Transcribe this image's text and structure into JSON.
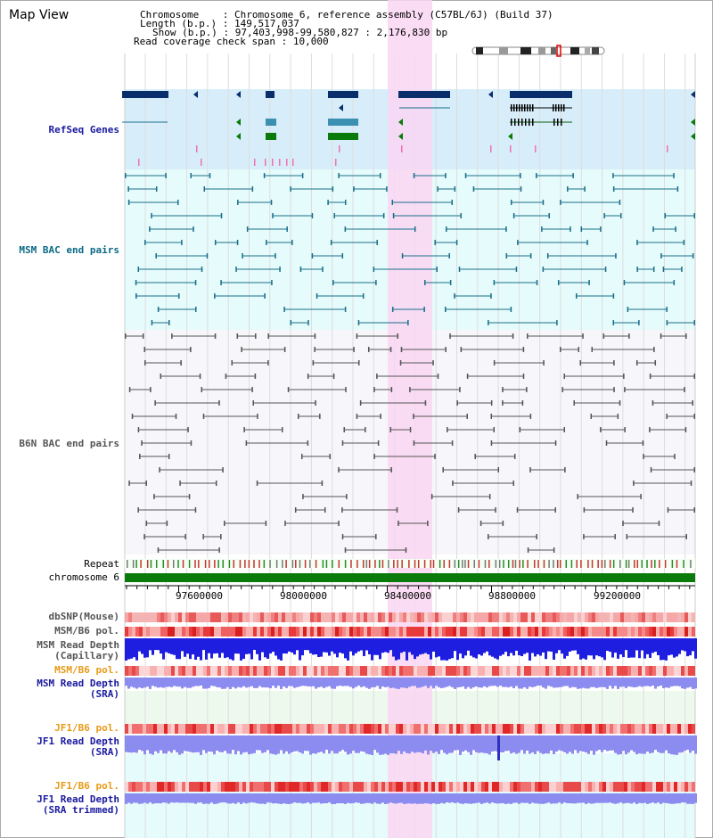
{
  "page": {
    "title": "Map View"
  },
  "info": {
    "chromosome_label": "Chromosome",
    "chromosome_value": "Chromosome 6, reference assembly (C57BL/6J) (Build 37)",
    "length_label": "Length (b.p.)",
    "length_value": "149,517,037",
    "show_label": "Show (b.p.)",
    "show_value": "97,403,998-99,580,827 : 2,176,830 bp",
    "coverage_label": "Read coverage check span",
    "coverage_value": "10,000"
  },
  "tracks": {
    "refseq": "RefSeq Genes",
    "msm_bac": "MSM BAC end pairs",
    "b6n_bac": "B6N BAC end pairs",
    "repeat": "Repeat",
    "chromosome": "chromosome 6",
    "dbsnp": "dbSNP(Mouse)",
    "msm_b6_pol": "MSM/B6 pol.",
    "msm_read_depth_cap": "MSM Read Depth",
    "msm_read_depth_cap_sub": "(Capillary)",
    "msm_b6_pol_2": "MSM/B6 pol.",
    "msm_read_depth_sra": "MSM Read Depth",
    "msm_read_depth_sra_sub": "(SRA)",
    "jf1_b6_pol": "JF1/B6 pol.",
    "jf1_read_depth_sra": "JF1 Read Depth",
    "jf1_read_depth_sra_sub": "(SRA)",
    "jf1_b6_pol_2": "JF1/B6 pol.",
    "jf1_read_depth_trim": "JF1 Read Depth",
    "jf1_read_depth_trim_sub": "(SRA trimmed)"
  },
  "scale": {
    "ticks": [
      "97600000",
      "98000000",
      "98400000",
      "98800000",
      "99200000"
    ]
  },
  "colors": {
    "highlight": "#f9d6f2",
    "refseq_bg": "#d7eefa",
    "bac_bg": "#e6fbfb",
    "navy": "#0a2e6c",
    "teal": "#1a6f8a",
    "green": "#0a7a0a",
    "snp_red": "#e84a4a",
    "depth_blue": "#1e1ee0",
    "depth_lav": "#8c8cf0"
  },
  "icons": {
    "ideogram": "chromosome-ideogram-icon"
  }
}
